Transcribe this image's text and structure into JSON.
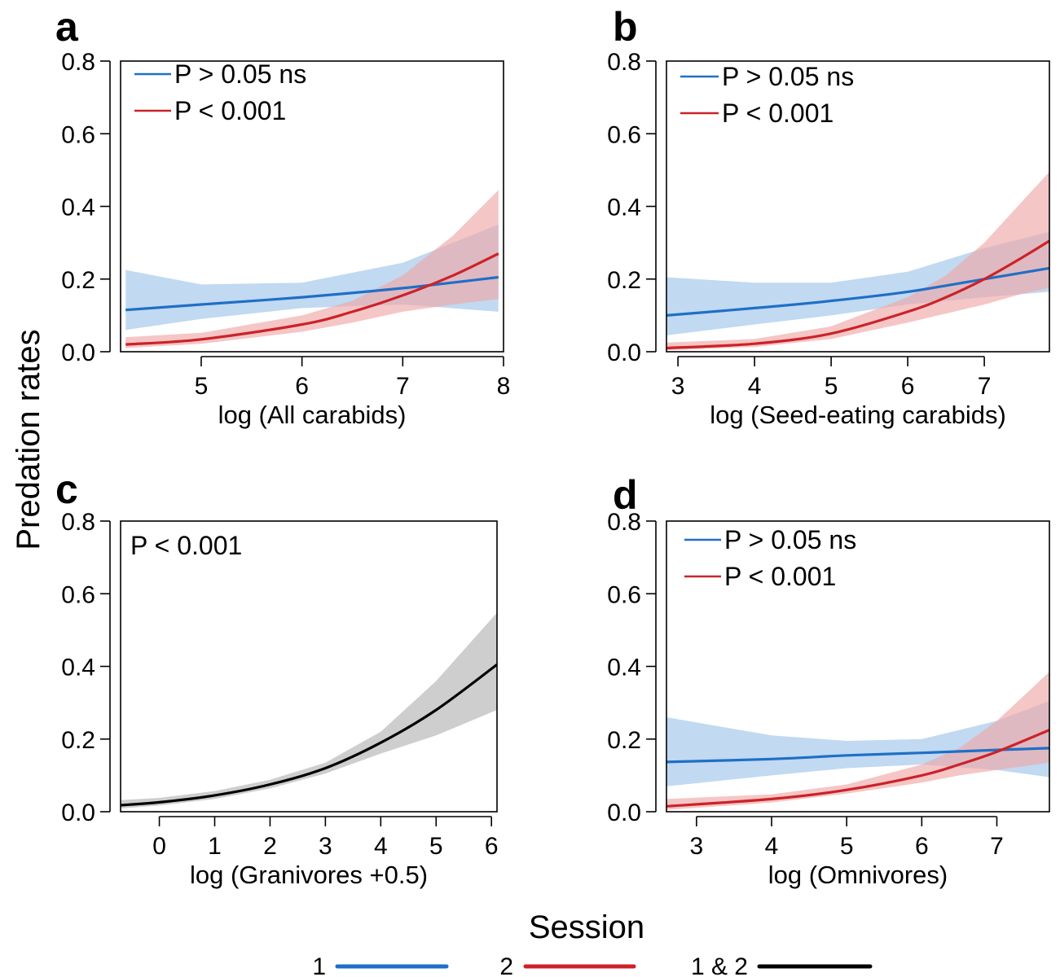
{
  "figure": {
    "ylabel": "Predation rates",
    "session_legend": {
      "title": "Session",
      "items": [
        {
          "label": "1",
          "color": "#1f6fc6"
        },
        {
          "label": "2",
          "color": "#cc2229"
        },
        {
          "label": "1 & 2",
          "color": "#000000"
        }
      ]
    }
  },
  "chart_data": [
    {
      "panel": "a",
      "type": "line",
      "xlabel": "log (All carabids)",
      "ylabel": "Predation rates",
      "xlim": [
        4.2,
        8.0
      ],
      "ylim": [
        0.0,
        0.8
      ],
      "xticks": [
        5,
        6,
        7,
        8
      ],
      "yticks": [
        0.0,
        0.2,
        0.4,
        0.6,
        0.8
      ],
      "legend": [
        {
          "label": "P > 0.05 ns",
          "color": "#1f6fc6"
        },
        {
          "label": "P < 0.001",
          "color": "#cc2229"
        }
      ],
      "series": [
        {
          "session": "1",
          "color": "#1f6fc6",
          "band_color": "#9fc4ea",
          "x": [
            4.25,
            5.0,
            6.0,
            7.0,
            7.95
          ],
          "y": [
            0.115,
            0.13,
            0.15,
            0.175,
            0.205
          ],
          "lower": [
            0.06,
            0.09,
            0.12,
            0.13,
            0.11
          ],
          "upper": [
            0.225,
            0.185,
            0.19,
            0.245,
            0.35
          ]
        },
        {
          "session": "2",
          "color": "#cc2229",
          "band_color": "#f0a8a8",
          "x": [
            4.25,
            5.0,
            6.0,
            6.5,
            7.0,
            7.5,
            7.95
          ],
          "y": [
            0.02,
            0.034,
            0.075,
            0.11,
            0.155,
            0.21,
            0.27
          ],
          "lower": [
            0.01,
            0.022,
            0.055,
            0.08,
            0.11,
            0.13,
            0.145
          ],
          "upper": [
            0.04,
            0.052,
            0.1,
            0.14,
            0.21,
            0.32,
            0.445
          ]
        }
      ]
    },
    {
      "panel": "b",
      "type": "line",
      "xlabel": "log (Seed-eating carabids)",
      "ylabel": "Predation rates",
      "xlim": [
        2.85,
        7.85
      ],
      "ylim": [
        0.0,
        0.8
      ],
      "xticks": [
        3,
        4,
        5,
        6,
        7
      ],
      "yticks": [
        0.0,
        0.2,
        0.4,
        0.6,
        0.8
      ],
      "legend": [
        {
          "label": "P > 0.05 ns",
          "color": "#1f6fc6"
        },
        {
          "label": "P < 0.001",
          "color": "#cc2229"
        }
      ],
      "series": [
        {
          "session": "1",
          "color": "#1f6fc6",
          "band_color": "#9fc4ea",
          "x": [
            2.85,
            4.0,
            5.0,
            6.0,
            7.0,
            7.85
          ],
          "y": [
            0.1,
            0.12,
            0.14,
            0.165,
            0.2,
            0.23
          ],
          "lower": [
            0.045,
            0.075,
            0.1,
            0.13,
            0.15,
            0.165
          ],
          "upper": [
            0.205,
            0.19,
            0.19,
            0.22,
            0.285,
            0.33
          ]
        },
        {
          "session": "2",
          "color": "#cc2229",
          "band_color": "#f0a8a8",
          "x": [
            2.85,
            4.0,
            5.0,
            6.0,
            6.5,
            7.0,
            7.5,
            7.85
          ],
          "y": [
            0.01,
            0.022,
            0.05,
            0.11,
            0.15,
            0.2,
            0.26,
            0.305
          ],
          "lower": [
            0.004,
            0.013,
            0.035,
            0.08,
            0.105,
            0.13,
            0.16,
            0.175
          ],
          "upper": [
            0.025,
            0.035,
            0.07,
            0.15,
            0.21,
            0.3,
            0.415,
            0.495
          ]
        }
      ]
    },
    {
      "panel": "c",
      "type": "line",
      "xlabel": "log (Granivores +0.5)",
      "ylabel": "Predation rates",
      "xlim": [
        -0.7,
        6.1
      ],
      "ylim": [
        0.0,
        0.8
      ],
      "xticks": [
        0,
        1,
        2,
        3,
        4,
        5,
        6
      ],
      "yticks": [
        0.0,
        0.2,
        0.4,
        0.6,
        0.8
      ],
      "annotation": "P < 0.001",
      "series": [
        {
          "session": "1 & 2",
          "color": "#000000",
          "band_color": "#b3b3b3",
          "x": [
            -0.7,
            0.0,
            1.0,
            2.0,
            3.0,
            4.0,
            5.0,
            6.1
          ],
          "y": [
            0.018,
            0.026,
            0.045,
            0.075,
            0.12,
            0.19,
            0.28,
            0.405
          ],
          "lower": [
            0.009,
            0.017,
            0.035,
            0.064,
            0.105,
            0.16,
            0.21,
            0.28
          ],
          "upper": [
            0.032,
            0.038,
            0.057,
            0.088,
            0.135,
            0.22,
            0.36,
            0.548
          ]
        }
      ]
    },
    {
      "panel": "d",
      "type": "line",
      "xlabel": "log (Omnivores)",
      "ylabel": "Predation rates",
      "xlim": [
        2.6,
        7.7
      ],
      "ylim": [
        0.0,
        0.8
      ],
      "xticks": [
        3,
        4,
        5,
        6,
        7
      ],
      "yticks": [
        0.0,
        0.2,
        0.4,
        0.6,
        0.8
      ],
      "legend": [
        {
          "label": "P > 0.05 ns",
          "color": "#1f6fc6"
        },
        {
          "label": "P < 0.001",
          "color": "#cc2229"
        }
      ],
      "series": [
        {
          "session": "1",
          "color": "#1f6fc6",
          "band_color": "#9fc4ea",
          "x": [
            2.6,
            4.0,
            5.0,
            6.0,
            7.0,
            7.7
          ],
          "y": [
            0.137,
            0.145,
            0.155,
            0.162,
            0.17,
            0.175
          ],
          "lower": [
            0.07,
            0.1,
            0.12,
            0.13,
            0.115,
            0.095
          ],
          "upper": [
            0.26,
            0.21,
            0.195,
            0.2,
            0.25,
            0.305
          ]
        },
        {
          "session": "2",
          "color": "#cc2229",
          "band_color": "#f0a8a8",
          "x": [
            2.6,
            4.0,
            5.0,
            6.0,
            6.5,
            7.0,
            7.7
          ],
          "y": [
            0.015,
            0.035,
            0.06,
            0.1,
            0.13,
            0.165,
            0.225
          ],
          "lower": [
            0.005,
            0.025,
            0.05,
            0.08,
            0.1,
            0.115,
            0.135
          ],
          "upper": [
            0.035,
            0.048,
            0.075,
            0.13,
            0.175,
            0.25,
            0.385
          ]
        }
      ]
    }
  ]
}
